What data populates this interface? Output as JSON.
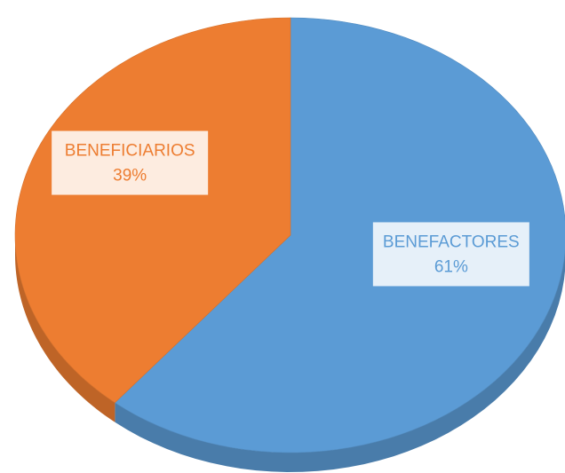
{
  "chart_data": {
    "type": "pie",
    "categories": [
      "BENEFACTORES",
      "BENEFICIARIOS"
    ],
    "values": [
      61,
      39
    ],
    "value_labels": [
      "61%",
      "39%"
    ],
    "colors": [
      "#5b9bd5",
      "#ed7d31"
    ]
  }
}
